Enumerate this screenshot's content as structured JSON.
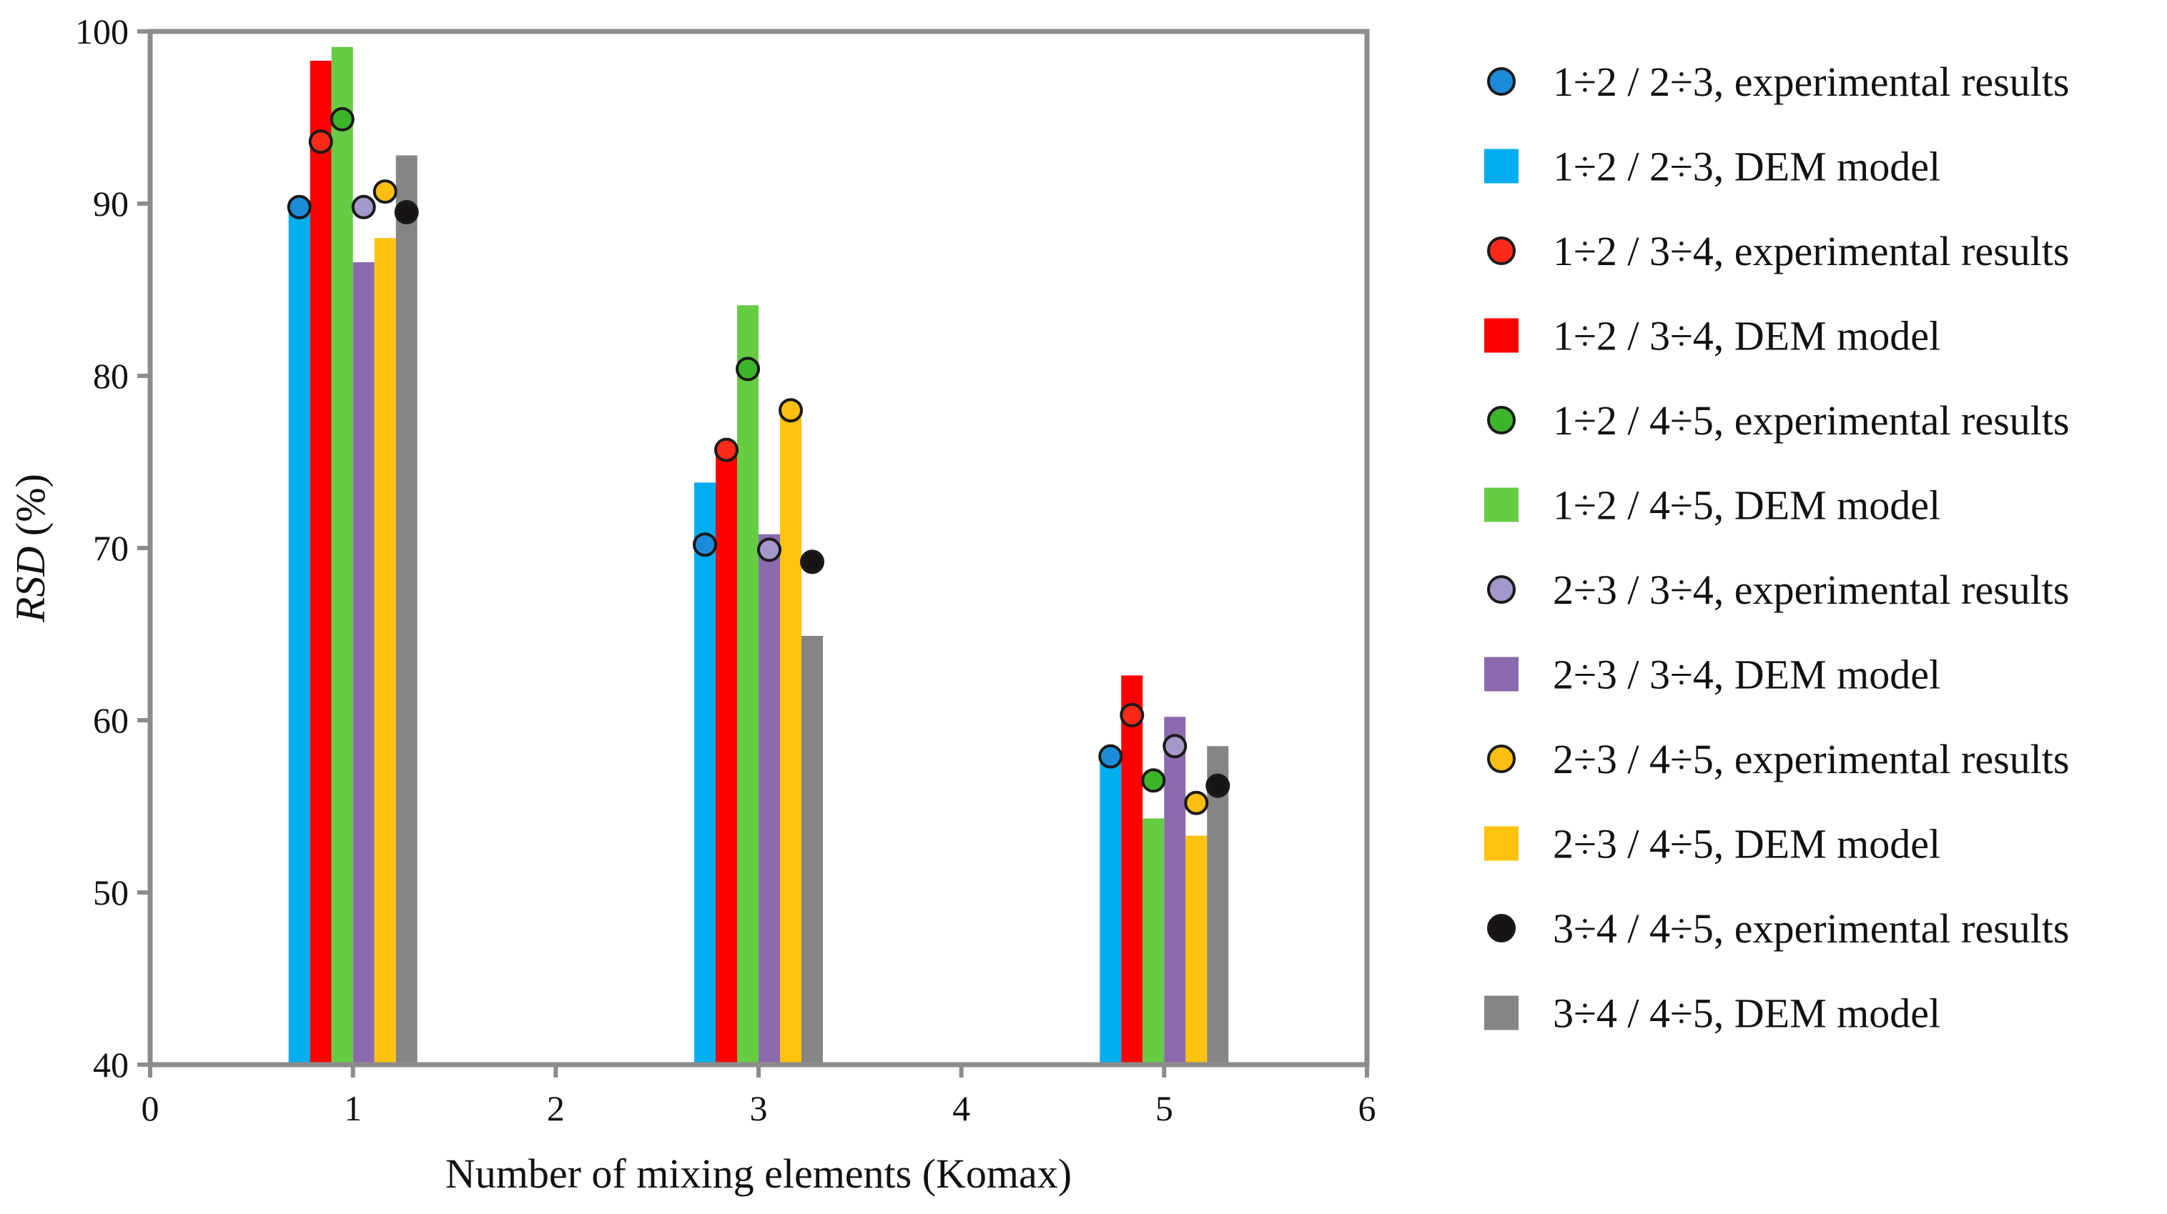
{
  "chart_data": {
    "type": "bar",
    "title": "",
    "xlabel": "Number of mixing elements (Komax)",
    "ylabel_italic": "RSD",
    "ylabel_unit": " (%)",
    "xlim": [
      0,
      6
    ],
    "ylim": [
      40,
      100
    ],
    "x_ticks": [
      "0",
      "1",
      "2",
      "3",
      "4",
      "5",
      "6"
    ],
    "y_ticks": [
      "40",
      "50",
      "60",
      "70",
      "80",
      "90",
      "100"
    ],
    "grid": false,
    "legend_position": "right",
    "x_groups": [
      1,
      3,
      5
    ],
    "series": [
      {
        "name": "1÷2 / 2÷3",
        "exp_label": "1÷2 / 2÷3, experimental results",
        "dem_label": "1÷2 / 2÷3, DEM model",
        "bar_color": "#00AEEF",
        "marker_color": "#1C8CD8",
        "dem_values": [
          89.8,
          73.8,
          57.8
        ],
        "exp_values": [
          89.8,
          70.2,
          57.9
        ]
      },
      {
        "name": "1÷2 / 3÷4",
        "exp_label": "1÷2 / 3÷4, experimental results",
        "dem_label": "1÷2 / 3÷4, DEM model",
        "bar_color": "#FF0000",
        "marker_color": "#FF2A1A",
        "dem_values": [
          98.3,
          75.8,
          62.6
        ],
        "exp_values": [
          93.6,
          75.7,
          60.3
        ]
      },
      {
        "name": "1÷2 / 4÷5",
        "exp_label": "1÷2 / 4÷5, experimental results",
        "dem_label": "1÷2 / 4÷5, DEM model",
        "bar_color": "#66CC44",
        "marker_color": "#3DB52A",
        "dem_values": [
          99.1,
          84.1,
          54.3
        ],
        "exp_values": [
          94.9,
          80.4,
          56.5
        ]
      },
      {
        "name": "2÷3 / 3÷4",
        "exp_label": "2÷3 / 3÷4, experimental results",
        "dem_label": "2÷3 / 3÷4, DEM model",
        "bar_color": "#8B6BAE",
        "marker_color": "#A597C9",
        "dem_values": [
          86.6,
          70.8,
          60.2
        ],
        "exp_values": [
          89.8,
          69.9,
          58.5
        ]
      },
      {
        "name": "2÷3 / 4÷5",
        "exp_label": "2÷3 / 4÷5, experimental results",
        "dem_label": "2÷3 / 4÷5, DEM model",
        "bar_color": "#FFC20E",
        "marker_color": "#FFBE10",
        "dem_values": [
          88.0,
          78.0,
          53.3
        ],
        "exp_values": [
          90.7,
          78.0,
          55.2
        ]
      },
      {
        "name": "3÷4 / 4÷5",
        "exp_label": "3÷4 / 4÷5, experimental results",
        "dem_label": "3÷4 / 4÷5, DEM model",
        "bar_color": "#858585",
        "marker_color": "#181414",
        "dem_values": [
          92.8,
          64.9,
          58.5
        ],
        "exp_values": [
          89.5,
          69.2,
          56.2
        ]
      }
    ]
  }
}
